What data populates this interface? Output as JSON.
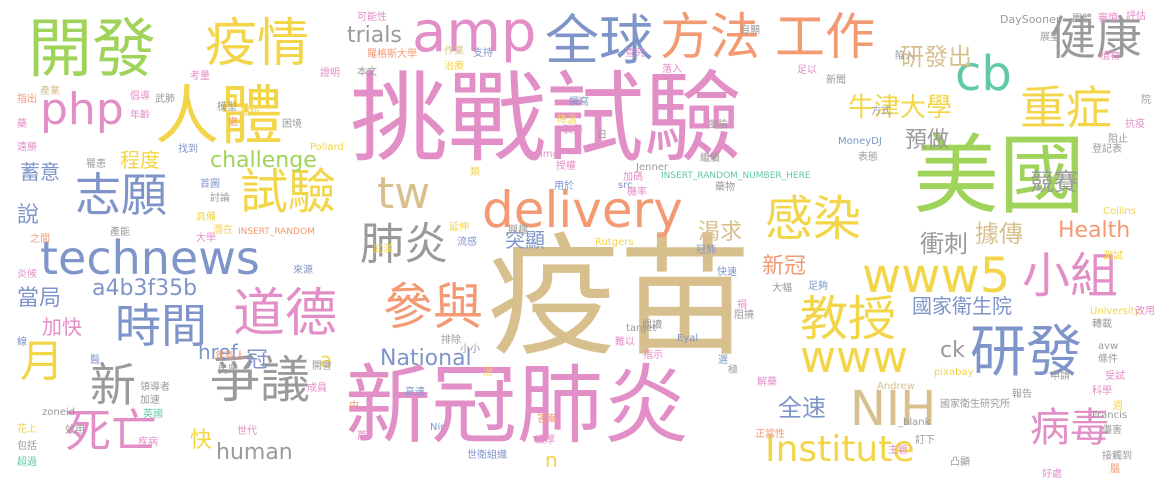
{
  "palette": {
    "green": "#9fd35a",
    "pink": "#e38fc7",
    "orange": "#f39a73",
    "blue": "#7f95c9",
    "yellow": "#f3d54a",
    "gray": "#9a9a9a",
    "tan": "#d8c08e",
    "teal": "#62c9a7"
  },
  "words": [
    {
      "text": "疫苗",
      "color": "tan"
    },
    {
      "text": "挑戰試驗",
      "color": "pink"
    },
    {
      "text": "新冠肺炎",
      "color": "pink"
    },
    {
      "text": "美國",
      "color": "green"
    },
    {
      "text": "開發",
      "color": "green"
    },
    {
      "text": "人體",
      "color": "yellow"
    },
    {
      "text": "疫情",
      "color": "yellow"
    },
    {
      "text": "amp",
      "color": "pink"
    },
    {
      "text": "全球",
      "color": "blue"
    },
    {
      "text": "方法",
      "color": "orange"
    },
    {
      "text": "工作",
      "color": "orange"
    },
    {
      "text": "健康",
      "color": "gray"
    },
    {
      "text": "cb",
      "color": "teal"
    },
    {
      "text": "重症",
      "color": "yellow"
    },
    {
      "text": "php",
      "color": "pink"
    },
    {
      "text": "研發",
      "color": "blue"
    },
    {
      "text": "病毒",
      "color": "pink"
    },
    {
      "text": "technews",
      "color": "blue"
    },
    {
      "text": "delivery",
      "color": "orange"
    },
    {
      "text": "志願",
      "color": "blue"
    },
    {
      "text": "試驗",
      "color": "yellow"
    },
    {
      "text": "道德",
      "color": "pink"
    },
    {
      "text": "參與",
      "color": "orange"
    },
    {
      "text": "www5",
      "color": "yellow"
    },
    {
      "text": "小組",
      "color": "pink"
    },
    {
      "text": "www",
      "color": "yellow"
    },
    {
      "text": "教授",
      "color": "yellow"
    },
    {
      "text": "感染",
      "color": "yellow"
    },
    {
      "text": "時間",
      "color": "blue"
    },
    {
      "text": "新",
      "color": "gray"
    },
    {
      "text": "爭議",
      "color": "gray"
    },
    {
      "text": "死亡",
      "color": "pink"
    },
    {
      "text": "肺炎",
      "color": "gray"
    },
    {
      "text": "tw",
      "color": "tan"
    },
    {
      "text": "NIH",
      "color": "tan"
    },
    {
      "text": "Institute",
      "color": "yellow"
    },
    {
      "text": "月",
      "color": "yellow"
    },
    {
      "text": "牛津大學",
      "color": "yellow"
    },
    {
      "text": "研發出",
      "color": "tan"
    },
    {
      "text": "預做",
      "color": "gray"
    },
    {
      "text": "trials",
      "color": "gray"
    },
    {
      "text": "challenge",
      "color": "green"
    },
    {
      "text": "human",
      "color": "gray"
    },
    {
      "text": "National",
      "color": "blue"
    },
    {
      "text": "Health",
      "color": "orange"
    },
    {
      "text": "國家衛生院",
      "color": "blue"
    },
    {
      "text": "競賽",
      "color": "gray"
    },
    {
      "text": "渴求",
      "color": "tan"
    },
    {
      "text": "衝刺",
      "color": "gray"
    },
    {
      "text": "據傳",
      "color": "tan"
    },
    {
      "text": "突顯",
      "color": "blue"
    },
    {
      "text": "新冠",
      "color": "orange"
    },
    {
      "text": "a4b3f35b",
      "color": "blue"
    },
    {
      "text": "當局",
      "color": "blue"
    },
    {
      "text": "加快",
      "color": "pink"
    },
    {
      "text": "href",
      "color": "blue"
    },
    {
      "text": "程度",
      "color": "yellow"
    },
    {
      "text": "蓄意",
      "color": "blue"
    },
    {
      "text": "說",
      "color": "blue"
    },
    {
      "text": "全速",
      "color": "blue"
    },
    {
      "text": "快",
      "color": "yellow"
    },
    {
      "text": "冠",
      "color": "blue"
    },
    {
      "text": "ck",
      "color": "gray"
    },
    {
      "text": "n",
      "color": "yellow"
    },
    {
      "text": "a",
      "color": "yellow"
    },
    {
      "text": "可能性",
      "color": "pink"
    },
    {
      "text": "DaySooner",
      "color": "gray"
    },
    {
      "text": "評估",
      "color": "pink"
    },
    {
      "text": "審慎",
      "color": "pink"
    },
    {
      "text": "自願",
      "color": "gray"
    },
    {
      "text": "羅格斯大學",
      "color": "orange"
    },
    {
      "text": "作業",
      "color": "tan"
    },
    {
      "text": "支持",
      "color": "blue"
    },
    {
      "text": "治療",
      "color": "yellow"
    },
    {
      "text": "證明",
      "color": "pink"
    },
    {
      "text": "考量",
      "color": "pink"
    },
    {
      "text": "產業",
      "color": "tan"
    },
    {
      "text": "指出",
      "color": "orange"
    },
    {
      "text": "倡導",
      "color": "pink"
    },
    {
      "text": "武肺",
      "color": "gray"
    },
    {
      "text": "模型",
      "color": "gray"
    },
    {
      "text": "年齡",
      "color": "pink"
    },
    {
      "text": "超級",
      "color": "yellow"
    },
    {
      "text": "遠勝",
      "color": "pink"
    },
    {
      "text": "罹患",
      "color": "gray"
    },
    {
      "text": "找到",
      "color": "blue"
    },
    {
      "text": "Pollard",
      "color": "yellow"
    },
    {
      "text": "MoneyDJ",
      "color": "blue"
    },
    {
      "text": "表態",
      "color": "gray"
    },
    {
      "text": "登記表",
      "color": "gray"
    },
    {
      "text": "阻止",
      "color": "gray"
    },
    {
      "text": "抗疫",
      "color": "pink"
    },
    {
      "text": "Jenner",
      "color": "gray"
    },
    {
      "text": "src",
      "color": "blue"
    },
    {
      "text": "img",
      "color": "pink"
    },
    {
      "text": "INSERT_RANDOM_NUMBER_HERE",
      "color": "teal"
    },
    {
      "text": "INSERT_RANDOM",
      "color": "orange"
    },
    {
      "text": "Rutgers",
      "color": "yellow"
    },
    {
      "text": "Collins",
      "color": "yellow"
    },
    {
      "text": "University",
      "color": "yellow"
    },
    {
      "text": "Eyal",
      "color": "blue"
    },
    {
      "text": "target",
      "color": "gray"
    },
    {
      "text": "avw",
      "color": "gray"
    },
    {
      "text": "Andrew",
      "color": "tan"
    },
    {
      "text": "pixabay",
      "color": "yellow"
    },
    {
      "text": "Francis",
      "color": "gray"
    },
    {
      "text": "_blank",
      "color": "gray"
    },
    {
      "text": "Nir",
      "color": "blue"
    },
    {
      "text": "zoneid",
      "color": "gray"
    },
    {
      "text": "首圖",
      "color": "blue"
    },
    {
      "text": "討論",
      "color": "gray"
    },
    {
      "text": "具備",
      "color": "yellow"
    },
    {
      "text": "產能",
      "color": "gray"
    },
    {
      "text": "大學",
      "color": "pink"
    },
    {
      "text": "潛在",
      "color": "yellow"
    },
    {
      "text": "之間",
      "color": "orange"
    },
    {
      "text": "炎候",
      "color": "pink"
    },
    {
      "text": "線",
      "color": "blue"
    },
    {
      "text": "年輕人",
      "color": "orange"
    },
    {
      "text": "民眾",
      "color": "gray"
    },
    {
      "text": "領導者",
      "color": "gray"
    },
    {
      "text": "加速",
      "color": "gray"
    },
    {
      "text": "英國",
      "color": "teal"
    },
    {
      "text": "效用",
      "color": "gray"
    },
    {
      "text": "包括",
      "color": "gray"
    },
    {
      "text": "超過",
      "color": "teal"
    },
    {
      "text": "花上",
      "color": "yellow"
    },
    {
      "text": "疾病",
      "color": "pink"
    },
    {
      "text": "世代",
      "color": "pink"
    },
    {
      "text": "來源",
      "color": "blue"
    },
    {
      "text": "成員",
      "color": "pink"
    },
    {
      "text": "高達",
      "color": "blue"
    },
    {
      "text": "世衛組織",
      "color": "blue"
    },
    {
      "text": "濃厚",
      "color": "pink"
    },
    {
      "text": "答案",
      "color": "orange"
    },
    {
      "text": "興趣",
      "color": "gray"
    },
    {
      "text": "流感",
      "color": "blue"
    },
    {
      "text": "武漢",
      "color": "yellow"
    },
    {
      "text": "延伸",
      "color": "yellow"
    },
    {
      "text": "加碼",
      "color": "pink"
    },
    {
      "text": "機率",
      "color": "pink"
    },
    {
      "text": "授權",
      "color": "pink"
    },
    {
      "text": "撰寫",
      "color": "blue"
    },
    {
      "text": "製藥",
      "color": "pink"
    },
    {
      "text": "查究",
      "color": "pink"
    },
    {
      "text": "落入",
      "color": "pink"
    },
    {
      "text": "新聞",
      "color": "gray"
    },
    {
      "text": "方式",
      "color": "gray"
    },
    {
      "text": "陷入",
      "color": "gray"
    },
    {
      "text": "展望",
      "color": "gray"
    },
    {
      "text": "團體",
      "color": "gray"
    },
    {
      "text": "風險",
      "color": "gray"
    },
    {
      "text": "冠肺",
      "color": "blue"
    },
    {
      "text": "測試",
      "color": "yellow"
    },
    {
      "text": "快速",
      "color": "blue"
    },
    {
      "text": "足夠",
      "color": "blue"
    },
    {
      "text": "大幅",
      "color": "gray"
    },
    {
      "text": "解藥",
      "color": "pink"
    },
    {
      "text": "正當性",
      "color": "orange"
    },
    {
      "text": "主管",
      "color": "pink"
    },
    {
      "text": "國家衛生研究所",
      "color": "gray"
    },
    {
      "text": "訂下",
      "color": "gray"
    },
    {
      "text": "報告",
      "color": "gray"
    },
    {
      "text": "好處",
      "color": "pink"
    },
    {
      "text": "凸顯",
      "color": "gray"
    },
    {
      "text": "接觸到",
      "color": "gray"
    },
    {
      "text": "受試",
      "color": "pink"
    },
    {
      "text": "條件",
      "color": "gray"
    },
    {
      "text": "科學",
      "color": "pink"
    },
    {
      "text": "轉載",
      "color": "gray"
    },
    {
      "text": "改用",
      "color": "pink"
    },
    {
      "text": "傷害",
      "color": "gray"
    },
    {
      "text": "開會",
      "color": "gray"
    },
    {
      "text": "本文",
      "color": "gray"
    },
    {
      "text": "排除",
      "color": "gray"
    },
    {
      "text": "難以",
      "color": "pink"
    },
    {
      "text": "指示",
      "color": "pink"
    },
    {
      "text": "選",
      "color": "blue"
    },
    {
      "text": "小小",
      "color": "gray"
    },
    {
      "text": "阻撓",
      "color": "gray"
    },
    {
      "text": "閱讀",
      "color": "gray"
    },
    {
      "text": "用於",
      "color": "blue"
    },
    {
      "text": "降溫",
      "color": "yellow"
    },
    {
      "text": "類",
      "color": "yellow"
    },
    {
      "text": "中",
      "color": "orange"
    },
    {
      "text": "萬",
      "color": "pink"
    },
    {
      "text": "治",
      "color": "yellow"
    },
    {
      "text": "院",
      "color": "gray"
    },
    {
      "text": "週",
      "color": "yellow"
    },
    {
      "text": "捐",
      "color": "pink"
    },
    {
      "text": "日",
      "color": "gray"
    },
    {
      "text": "繼續",
      "color": "gray"
    },
    {
      "text": "藥",
      "color": "pink"
    },
    {
      "text": "處",
      "color": "orange"
    },
    {
      "text": "困境",
      "color": "gray"
    },
    {
      "text": "植物",
      "color": "pink"
    },
    {
      "text": "申請",
      "color": "gray"
    },
    {
      "text": "藥物",
      "color": "gray"
    },
    {
      "text": "足以",
      "color": "pink"
    },
    {
      "text": "極",
      "color": "gray"
    },
    {
      "text": "腦",
      "color": "orange"
    },
    {
      "text": "醫",
      "color": "blue"
    },
    {
      "text": "屬",
      "color": "yellow"
    }
  ]
}
